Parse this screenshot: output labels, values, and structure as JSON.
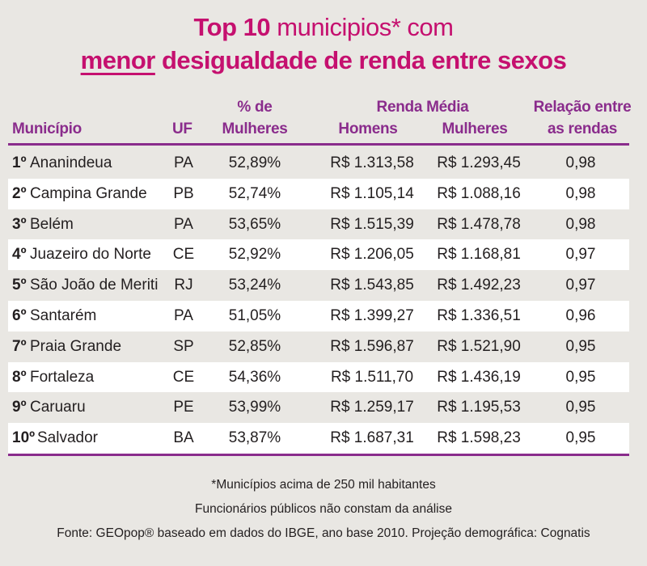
{
  "title": {
    "line1_bold": "Top 10",
    "line1_rest": " municipios* com",
    "line2_underlined": "menor",
    "line2_rest": " desigualdade de renda entre sexos"
  },
  "headers": {
    "municipio": "Município",
    "uf": "UF",
    "pct_line1": "% de",
    "pct_line2": "Mulheres",
    "renda_group": "Renda Média",
    "homens": "Homens",
    "mulheres": "Mulheres",
    "relacao_line1": "Relação entre",
    "relacao_line2": "as rendas"
  },
  "rows": [
    {
      "rank": "1º",
      "name": "Ananindeua",
      "uf": "PA",
      "pct": "52,89%",
      "homens": "R$ 1.313,58",
      "mulheres": "R$ 1.293,45",
      "relacao": "0,98"
    },
    {
      "rank": "2º",
      "name": "Campina Grande",
      "uf": "PB",
      "pct": "52,74%",
      "homens": "R$ 1.105,14",
      "mulheres": "R$ 1.088,16",
      "relacao": "0,98"
    },
    {
      "rank": "3º",
      "name": "Belém",
      "uf": "PA",
      "pct": "53,65%",
      "homens": "R$ 1.515,39",
      "mulheres": "R$ 1.478,78",
      "relacao": "0,98"
    },
    {
      "rank": "4º",
      "name": "Juazeiro do Norte",
      "uf": "CE",
      "pct": "52,92%",
      "homens": "R$ 1.206,05",
      "mulheres": "R$ 1.168,81",
      "relacao": "0,97"
    },
    {
      "rank": "5º",
      "name": "São João de Meriti",
      "uf": "RJ",
      "pct": "53,24%",
      "homens": "R$ 1.543,85",
      "mulheres": "R$ 1.492,23",
      "relacao": "0,97"
    },
    {
      "rank": "6º",
      "name": "Santarém",
      "uf": "PA",
      "pct": "51,05%",
      "homens": "R$ 1.399,27",
      "mulheres": "R$ 1.336,51",
      "relacao": "0,96"
    },
    {
      "rank": "7º",
      "name": "Praia Grande",
      "uf": "SP",
      "pct": "52,85%",
      "homens": "R$ 1.596,87",
      "mulheres": "R$ 1.521,90",
      "relacao": "0,95"
    },
    {
      "rank": "8º",
      "name": "Fortaleza",
      "uf": "CE",
      "pct": "54,36%",
      "homens": "R$ 1.511,70",
      "mulheres": "R$ 1.436,19",
      "relacao": "0,95"
    },
    {
      "rank": "9º",
      "name": "Caruaru",
      "uf": "PE",
      "pct": "53,99%",
      "homens": "R$ 1.259,17",
      "mulheres": "R$ 1.195,53",
      "relacao": "0,95"
    },
    {
      "rank": "10º",
      "name": "Salvador",
      "uf": "BA",
      "pct": "53,87%",
      "homens": "R$ 1.687,31",
      "mulheres": "R$ 1.598,23",
      "relacao": "0,95"
    }
  ],
  "footnotes": [
    "*Municípios acima de 250 mil habitantes",
    "Funcionários públicos não constam da análise",
    "Fonte: GEOpop® baseado em dados do IBGE, ano base 2010. Projeção demográfica: Cognatis"
  ],
  "colors": {
    "title": "#c5106f",
    "header": "#8a2c8c",
    "background": "#e9e7e3",
    "row_alt": "#ffffff"
  }
}
